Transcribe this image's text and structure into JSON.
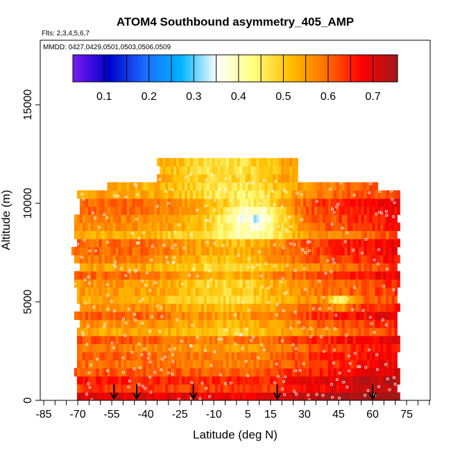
{
  "chart_data": {
    "type": "heatmap",
    "title": "ATOM4 Southbound asymmetry_405_AMP",
    "flights_note": "Flts: 2,3,4,5,6,7",
    "dates_note": "MMDD: 0427,0429,0501,0503,0506,0509",
    "xlabel": "Latitude (deg N)",
    "ylabel": "Altitude (m)",
    "x_ticks": [
      "-85",
      "-70",
      "-55",
      "-40",
      "-25",
      "-10",
      "5",
      "15",
      "30",
      "45",
      "60",
      "75"
    ],
    "x_tick_values": [
      -85,
      -70,
      -55,
      -40,
      -25,
      -10,
      5,
      15,
      30,
      45,
      60,
      75
    ],
    "y_ticks": [
      "0",
      "5000",
      "10000",
      "15000"
    ],
    "y_tick_values": [
      0,
      5000,
      10000,
      15000
    ],
    "xlim": [
      -87,
      90
    ],
    "ylim": [
      0,
      17500
    ],
    "colorbar": {
      "ticks": [
        "0.1",
        "0.2",
        "0.3",
        "0.4",
        "0.5",
        "0.6",
        "0.7"
      ],
      "tick_values": [
        0.1,
        0.2,
        0.3,
        0.4,
        0.5,
        0.6,
        0.7
      ],
      "range": [
        0.03,
        0.755
      ],
      "colors": [
        "#7a1cf2",
        "#0000c8",
        "#1a6cff",
        "#00b4ff",
        "#ffffff",
        "#ffff80",
        "#ffc000",
        "#ff7000",
        "#ff0000",
        "#a01818"
      ]
    },
    "arrows_latitude": [
      -54,
      -44,
      -19,
      18,
      60
    ],
    "data_extent": {
      "lat_min": -74,
      "lat_max": 72,
      "alt_min": 0,
      "alt_max": 12300
    },
    "value_summary": {
      "description_values": "asymmetry mostly 0.45-0.72; lower values (~0.3-0.4) near -10 to 20 lat around 9000-10000 m; highest (~0.7) near surface and at northern latitudes"
    }
  }
}
